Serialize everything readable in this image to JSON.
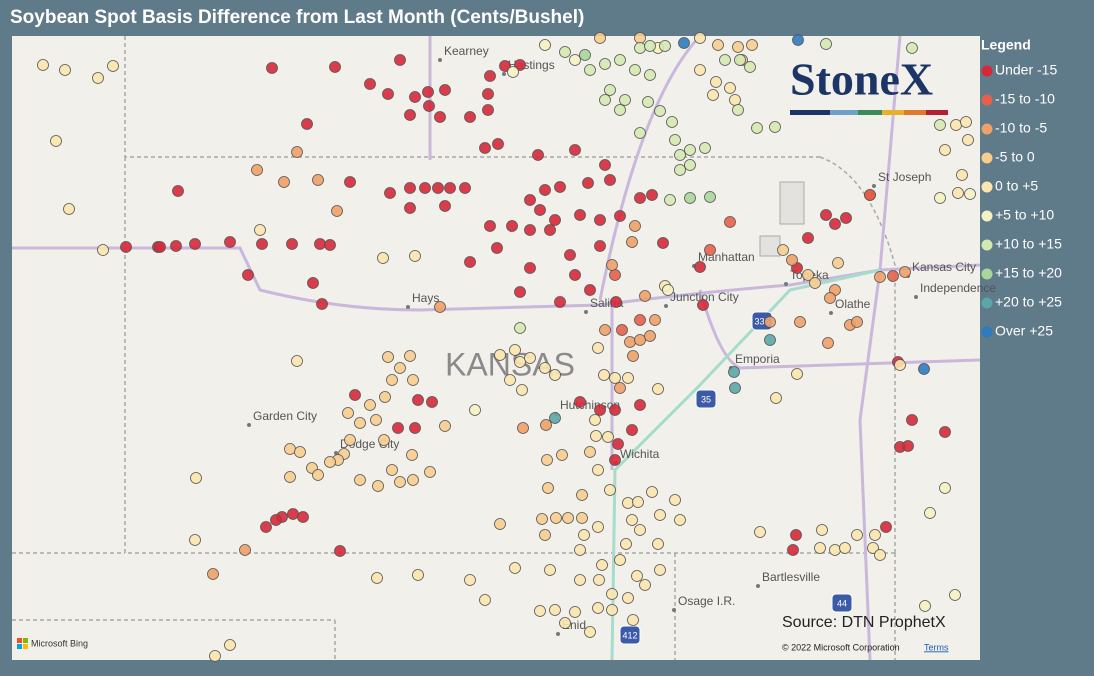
{
  "header": {
    "title": "Soybean Spot Basis Difference from Last Month (Cents/Bushel)"
  },
  "legend": {
    "title": "Legend",
    "items": [
      {
        "label": "Under -15",
        "color": "#d62839"
      },
      {
        "label": "-15 to -10",
        "color": "#e8604a"
      },
      {
        "label": "-10 to -5",
        "color": "#f0a068"
      },
      {
        "label": "-5 to 0",
        "color": "#f7cd8f"
      },
      {
        "label": "0 to +5",
        "color": "#fbe6ae"
      },
      {
        "label": "+5 to +10",
        "color": "#f4f2c2"
      },
      {
        "label": "+10 to +15",
        "color": "#d4e9b1"
      },
      {
        "label": "+15 to +20",
        "color": "#a9d69b"
      },
      {
        "label": "+20 to +25",
        "color": "#5ba6a8"
      },
      {
        "label": "Over +25",
        "color": "#2f7bbf"
      }
    ]
  },
  "map": {
    "state_label": "KANSAS",
    "places": [
      "Kearney",
      "Hastings",
      "St Joseph",
      "Manhattan",
      "Topeka",
      "Kansas City",
      "Independence",
      "Olathe",
      "Hays",
      "Salina",
      "Junction City",
      "Emporia",
      "Garden City",
      "Dodge City",
      "Hutchinson",
      "Wichita",
      "Bartlesville",
      "Osage I.R.",
      "Enid"
    ],
    "shields": [
      "335",
      "35",
      "44",
      "412"
    ]
  },
  "logo": "StoneX",
  "source": "Source: DTN ProphetX",
  "attribution": {
    "copyright": "© 2022 Microsoft Corporation",
    "terms": "Terms",
    "provider": "Microsoft Bing"
  }
}
